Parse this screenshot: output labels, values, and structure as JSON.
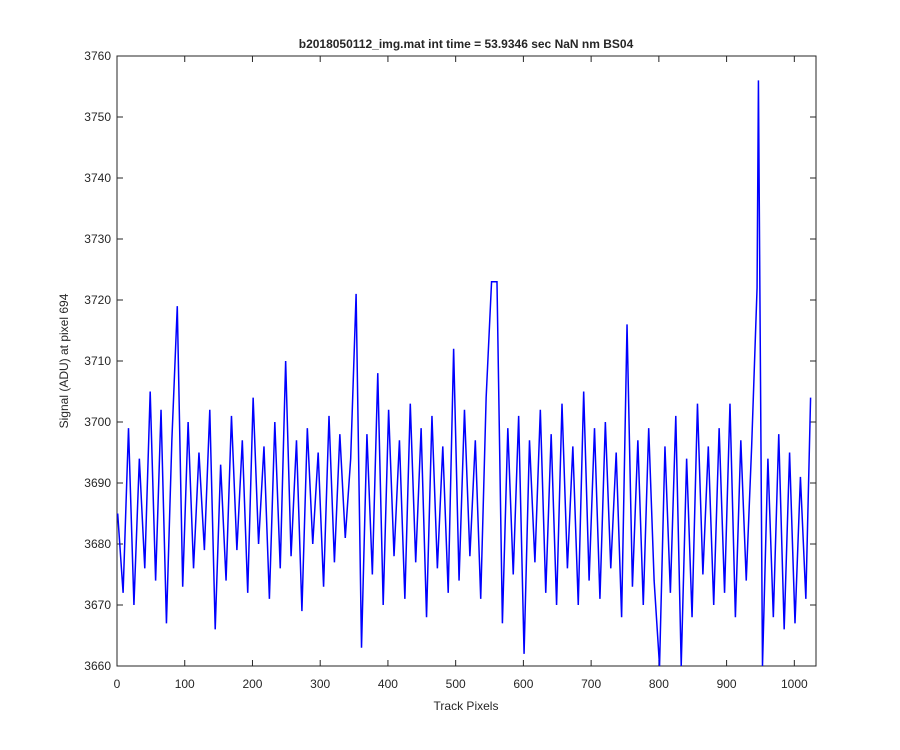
{
  "chart_data": {
    "type": "line",
    "title": "b2018050112_img.mat int time = 53.9346 sec  NaN nm BS04",
    "x_label": "Track Pixels",
    "y_label": "Signal (ADU) at pixel 694",
    "x": [
      1,
      9,
      17,
      25,
      33,
      41,
      49,
      57,
      65,
      73,
      81,
      89,
      97,
      105,
      113,
      121,
      129,
      137,
      145,
      153,
      161,
      169,
      177,
      185,
      193,
      201,
      209,
      217,
      225,
      233,
      241,
      249,
      257,
      265,
      273,
      281,
      289,
      297,
      305,
      313,
      321,
      329,
      337,
      345,
      353,
      361,
      369,
      377,
      385,
      393,
      401,
      409,
      417,
      425,
      433,
      441,
      449,
      457,
      465,
      473,
      481,
      489,
      497,
      505,
      513,
      521,
      529,
      537,
      545,
      553,
      561,
      569,
      577,
      585,
      593,
      601,
      609,
      617,
      625,
      633,
      641,
      649,
      657,
      665,
      673,
      681,
      689,
      697,
      705,
      713,
      721,
      729,
      737,
      745,
      753,
      761,
      769,
      777,
      785,
      793,
      801,
      809,
      817,
      825,
      833,
      841,
      849,
      857,
      865,
      873,
      881,
      889,
      897,
      905,
      913,
      921,
      929,
      937,
      945,
      947,
      953,
      961,
      969,
      977,
      985,
      993,
      1001,
      1009,
      1017,
      1024
    ],
    "series": [
      {
        "color": "#0000ff",
        "values": [
          3685,
          3672,
          3699,
          3670,
          3694,
          3676,
          3705,
          3674,
          3702,
          3667,
          3697,
          3719,
          3673,
          3700,
          3676,
          3695,
          3679,
          3702,
          3666,
          3693,
          3674,
          3701,
          3679,
          3697,
          3672,
          3704,
          3680,
          3696,
          3671,
          3700,
          3676,
          3710,
          3678,
          3697,
          3669,
          3699,
          3680,
          3695,
          3673,
          3701,
          3677,
          3698,
          3681,
          3694,
          3721,
          3663,
          3698,
          3675,
          3708,
          3670,
          3702,
          3678,
          3697,
          3671,
          3703,
          3677,
          3699,
          3668,
          3701,
          3676,
          3696,
          3672,
          3712,
          3674,
          3702,
          3678,
          3697,
          3671,
          3704,
          3723,
          3723,
          3667,
          3699,
          3675,
          3701,
          3662,
          3697,
          3677,
          3702,
          3672,
          3698,
          3670,
          3703,
          3676,
          3696,
          3670,
          3705,
          3674,
          3699,
          3671,
          3700,
          3676,
          3695,
          3668,
          3716,
          3673,
          3697,
          3670,
          3699,
          3674,
          3660,
          3696,
          3672,
          3701,
          3660,
          3694,
          3668,
          3703,
          3675,
          3696,
          3670,
          3699,
          3672,
          3703,
          3668,
          3697,
          3674,
          3696,
          3722,
          3756,
          3660,
          3694,
          3668,
          3698,
          3666,
          3695,
          3667,
          3691,
          3671,
          3704
        ]
      }
    ],
    "xlim": [
      0,
      1032
    ],
    "ylim": [
      3660,
      3760
    ],
    "xticks": [
      0,
      100,
      200,
      300,
      400,
      500,
      600,
      700,
      800,
      900,
      1000
    ],
    "yticks": [
      3660,
      3670,
      3680,
      3690,
      3700,
      3710,
      3720,
      3730,
      3740,
      3750,
      3760
    ]
  }
}
